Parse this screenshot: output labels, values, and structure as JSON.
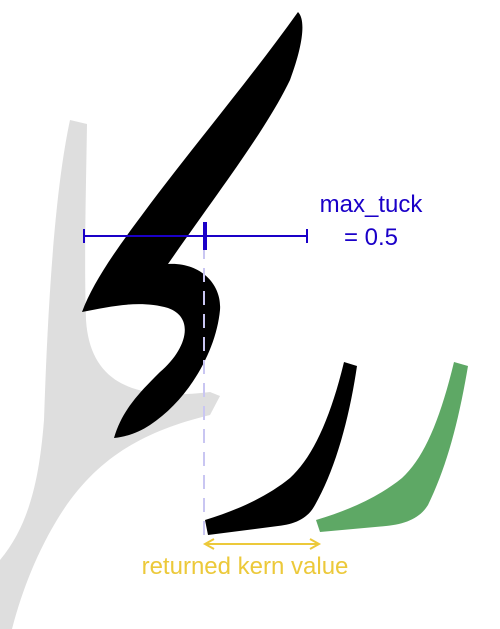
{
  "annotations": {
    "max_tuck_label": "max_tuck",
    "max_tuck_value": "= 0.5",
    "kern_label": "returned kern value"
  },
  "colors": {
    "background": "#ffffff",
    "ghost_glyph": "#dedede",
    "glyph": "#000000",
    "shifted_glyph": "#5ea865",
    "tuck_marker": "#1a00c8",
    "guide_line": "#c9c6f2",
    "kern_arrow": "#ecc93a"
  }
}
